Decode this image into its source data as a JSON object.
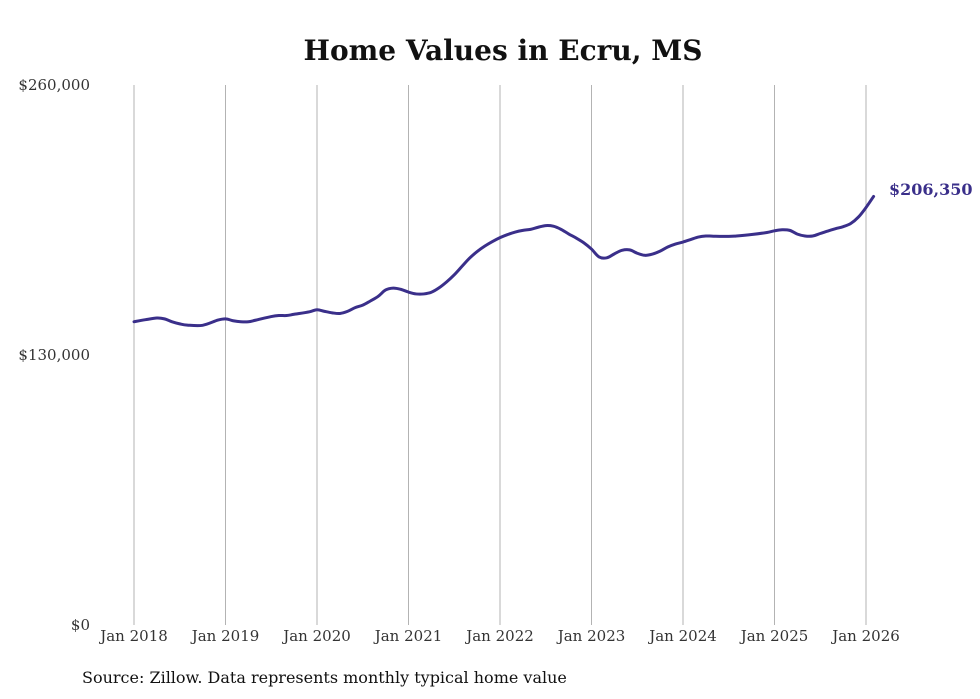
{
  "chart_data": {
    "type": "line",
    "title": "Home Values in Ecru, MS",
    "xlabel": "",
    "ylabel": "",
    "ylim": [
      0,
      260000
    ],
    "y_ticks": [
      {
        "value": 0,
        "label": "$0"
      },
      {
        "value": 130000,
        "label": "$130,000"
      },
      {
        "value": 260000,
        "label": "$260,000"
      }
    ],
    "x_ticks": [
      {
        "value": 2018,
        "label": "Jan 2018"
      },
      {
        "value": 2019,
        "label": "Jan 2019"
      },
      {
        "value": 2020,
        "label": "Jan 2020"
      },
      {
        "value": 2021,
        "label": "Jan 2021"
      },
      {
        "value": 2022,
        "label": "Jan 2022"
      },
      {
        "value": 2023,
        "label": "Jan 2023"
      },
      {
        "value": 2024,
        "label": "Jan 2024"
      },
      {
        "value": 2025,
        "label": "Jan 2025"
      },
      {
        "value": 2026,
        "label": "Jan 2026"
      }
    ],
    "xlim": [
      2018,
      2026.083
    ],
    "grid": "vertical",
    "series": [
      {
        "name": "Typical home value",
        "color": "#3a2f8a",
        "x": [
          2018.0,
          2018.125,
          2018.25,
          2018.333,
          2018.417,
          2018.5,
          2018.583,
          2018.75,
          2018.917,
          2019.0,
          2019.083,
          2019.167,
          2019.25,
          2019.333,
          2019.5,
          2019.583,
          2019.667,
          2019.75,
          2019.917,
          2020.0,
          2020.083,
          2020.167,
          2020.25,
          2020.333,
          2020.417,
          2020.5,
          2020.583,
          2020.667,
          2020.75,
          2020.833,
          2020.917,
          2021.0,
          2021.083,
          2021.167,
          2021.25,
          2021.333,
          2021.417,
          2021.5,
          2021.583,
          2021.667,
          2021.75,
          2021.833,
          2021.917,
          2022.0,
          2022.083,
          2022.167,
          2022.25,
          2022.333,
          2022.417,
          2022.5,
          2022.583,
          2022.667,
          2022.75,
          2022.833,
          2022.917,
          2023.0,
          2023.083,
          2023.167,
          2023.25,
          2023.333,
          2023.417,
          2023.5,
          2023.583,
          2023.667,
          2023.75,
          2023.833,
          2023.917,
          2024.0,
          2024.083,
          2024.167,
          2024.25,
          2024.333,
          2024.5,
          2024.583,
          2024.75,
          2024.917,
          2025.0,
          2025.083,
          2025.167,
          2025.25,
          2025.333,
          2025.417,
          2025.5,
          2025.583,
          2025.667,
          2025.75,
          2025.833,
          2025.917,
          2026.0,
          2026.083
        ],
        "values": [
          146000,
          147000,
          147800,
          147400,
          146000,
          145000,
          144400,
          144300,
          146800,
          147400,
          146500,
          146000,
          146000,
          146800,
          148500,
          149000,
          149000,
          149600,
          150800,
          151800,
          151000,
          150300,
          150000,
          151000,
          152800,
          154000,
          156000,
          158200,
          161300,
          162200,
          161600,
          160300,
          159400,
          159400,
          160200,
          162300,
          165200,
          168600,
          172600,
          176600,
          179800,
          182400,
          184600,
          186500,
          188000,
          189200,
          190000,
          190500,
          191500,
          192300,
          192000,
          190500,
          188300,
          186300,
          184000,
          181000,
          177200,
          176800,
          178700,
          180400,
          180600,
          179000,
          178000,
          178600,
          180000,
          182000,
          183400,
          184400,
          185600,
          186800,
          187300,
          187200,
          187100,
          187300,
          188000,
          189000,
          189800,
          190300,
          190000,
          188200,
          187300,
          187300,
          188500,
          189700,
          190800,
          191800,
          193300,
          196400,
          201000,
          206350
        ]
      }
    ],
    "end_label": "$206,350",
    "source": "Source: Zillow. Data represents monthly typical home value"
  }
}
